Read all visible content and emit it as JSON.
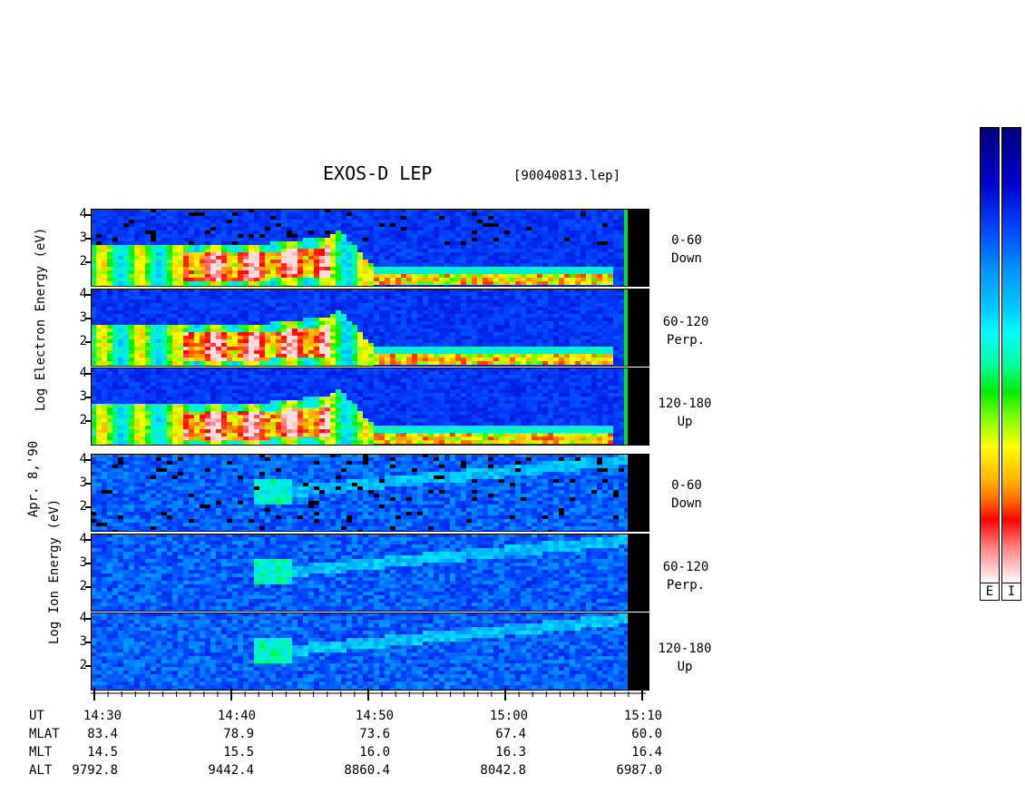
{
  "title": "EXOS-D LEP",
  "file": "[90040813.lep]",
  "date_label": "Apr. 8,'90",
  "electron_axis": {
    "words": [
      "Log",
      "Electron",
      "Energy",
      "(eV)"
    ]
  },
  "ion_axis": {
    "words": [
      "Log",
      "Ion",
      "Energy",
      "(eV)"
    ]
  },
  "panel_labels": [
    {
      "range": "0-60",
      "dir": "Down"
    },
    {
      "range": "60-120",
      "dir": "Perp."
    },
    {
      "range": "120-180",
      "dir": "Up"
    }
  ],
  "colorbar": {
    "labels": [
      "E",
      "I"
    ]
  },
  "colors": {
    "background": "#000080",
    "brand": "#0000aa"
  },
  "footer": {
    "row_labels": [
      "UT",
      "MLAT",
      "MLT",
      "ALT"
    ],
    "columns": [
      {
        "ut": "14:30",
        "mlat": "83.4",
        "mlt": "14.5",
        "alt": "9792.8"
      },
      {
        "ut": "14:40",
        "mlat": "78.9",
        "mlt": "15.5",
        "alt": "9442.4"
      },
      {
        "ut": "14:50",
        "mlat": "73.6",
        "mlt": "16.0",
        "alt": "8860.4"
      },
      {
        "ut": "15:00",
        "mlat": "67.4",
        "mlt": "16.3",
        "alt": "8042.8"
      },
      {
        "ut": "15:10",
        "mlat": "60.0",
        "mlt": "16.4",
        "alt": "6987.0"
      }
    ]
  },
  "chart_data": {
    "type": "heatmap",
    "title": "EXOS-D LEP",
    "x_range": [
      "14:30",
      "15:10"
    ],
    "x_ticks": [
      "14:30",
      "14:40",
      "14:50",
      "15:00",
      "15:10"
    ],
    "y_ticks": [
      "2",
      "3",
      "4"
    ],
    "y_range": [
      1,
      4.3
    ],
    "panels": [
      {
        "species": "Electron",
        "pitch": "0-60",
        "dir": "Down"
      },
      {
        "species": "Electron",
        "pitch": "60-120",
        "dir": "Perp."
      },
      {
        "species": "Electron",
        "pitch": "120-180",
        "dir": "Up"
      },
      {
        "species": "Ion",
        "pitch": "0-60",
        "dir": "Down"
      },
      {
        "species": "Ion",
        "pitch": "60-120",
        "dir": "Perp."
      },
      {
        "species": "Ion",
        "pitch": "120-180",
        "dir": "Up"
      }
    ]
  }
}
